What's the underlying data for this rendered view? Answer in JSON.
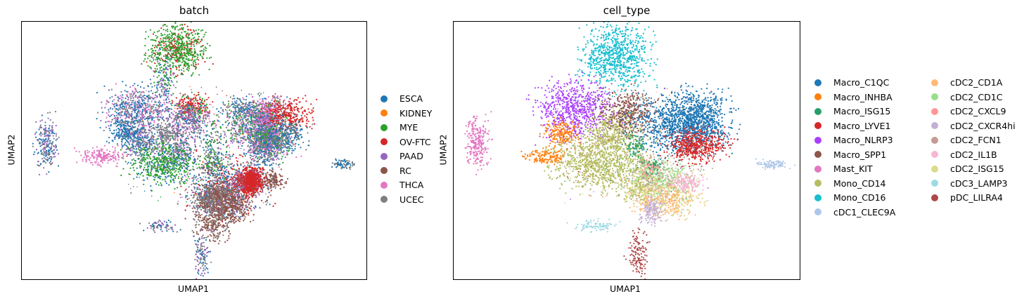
{
  "chart_data": [
    {
      "type": "scatter",
      "title": "batch",
      "xlabel": "UMAP1",
      "ylabel": "UMAP2",
      "legend_position": "right",
      "legend": [
        {
          "label": "ESCA",
          "color": "#1f77b4"
        },
        {
          "label": "KIDNEY",
          "color": "#ff7f0e"
        },
        {
          "label": "MYE",
          "color": "#2ca02c"
        },
        {
          "label": "OV-FTC",
          "color": "#d62728"
        },
        {
          "label": "PAAD",
          "color": "#9467bd"
        },
        {
          "label": "RC",
          "color": "#8c564b"
        },
        {
          "label": "THCA",
          "color": "#e377c2"
        },
        {
          "label": "UCEC",
          "color": "#7f7f7f"
        }
      ],
      "clusters": [
        {
          "x": 0.45,
          "y": 0.89,
          "rx": 0.05,
          "ry": 0.06,
          "n": 700,
          "mix": [
            "MYE",
            "MYE",
            "MYE",
            "MYE",
            "OV-FTC"
          ]
        },
        {
          "x": 0.41,
          "y": 0.78,
          "rx": 0.02,
          "ry": 0.07,
          "n": 120,
          "mix": [
            "MYE",
            "PAAD",
            "ESCA"
          ]
        },
        {
          "x": 0.34,
          "y": 0.66,
          "rx": 0.06,
          "ry": 0.06,
          "n": 700,
          "mix": [
            "ESCA",
            "ESCA",
            "UCEC",
            "PAAD",
            "THCA"
          ]
        },
        {
          "x": 0.3,
          "y": 0.57,
          "rx": 0.03,
          "ry": 0.03,
          "n": 180,
          "mix": [
            "ESCA"
          ]
        },
        {
          "x": 0.49,
          "y": 0.67,
          "rx": 0.03,
          "ry": 0.03,
          "n": 250,
          "mix": [
            "OV-FTC",
            "OV-FTC",
            "MYE"
          ]
        },
        {
          "x": 0.48,
          "y": 0.62,
          "rx": 0.04,
          "ry": 0.04,
          "n": 350,
          "mix": [
            "UCEC",
            "PAAD",
            "THCA",
            "ESCA"
          ]
        },
        {
          "x": 0.67,
          "y": 0.6,
          "rx": 0.06,
          "ry": 0.06,
          "n": 700,
          "mix": [
            "ESCA",
            "MYE",
            "PAAD",
            "THCA",
            "UCEC"
          ]
        },
        {
          "x": 0.71,
          "y": 0.64,
          "rx": 0.03,
          "ry": 0.04,
          "n": 300,
          "mix": [
            "MYE",
            "THCA",
            "PAAD"
          ]
        },
        {
          "x": 0.73,
          "y": 0.54,
          "rx": 0.04,
          "ry": 0.05,
          "n": 250,
          "mix": [
            "MYE",
            "THCA",
            "ESCA"
          ]
        },
        {
          "x": 0.7,
          "y": 0.58,
          "rx": 0.02,
          "ry": 0.03,
          "n": 120,
          "mix": [
            "PAAD"
          ]
        },
        {
          "x": 0.7,
          "y": 0.52,
          "rx": 0.03,
          "ry": 0.02,
          "n": 100,
          "mix": [
            "THCA"
          ]
        },
        {
          "x": 0.71,
          "y": 0.55,
          "rx": 0.03,
          "ry": 0.03,
          "n": 120,
          "mix": [
            "MYE"
          ]
        },
        {
          "x": 0.71,
          "y": 0.62,
          "rx": 0.03,
          "ry": 0.03,
          "n": 120,
          "mix": [
            "THCA",
            "ESCA"
          ]
        },
        {
          "x": 0.7,
          "y": 0.47,
          "rx": 0.03,
          "ry": 0.02,
          "n": 60,
          "mix": [
            "ESCA",
            "UCEC"
          ]
        },
        {
          "x": 0.7,
          "y": 0.65,
          "rx": 0.02,
          "ry": 0.03,
          "n": 60,
          "mix": [
            "THCA"
          ]
        },
        {
          "x": 0.64,
          "y": 0.66,
          "rx": 0.04,
          "ry": 0.03,
          "n": 150,
          "mix": [
            "ESCA",
            "UCEC"
          ]
        },
        {
          "x": 0.77,
          "y": 0.64,
          "rx": 0.04,
          "ry": 0.04,
          "n": 300,
          "mix": [
            "OV-FTC"
          ]
        },
        {
          "x": 0.7,
          "y": 0.52,
          "rx": 0.04,
          "ry": 0.04,
          "n": 250,
          "mix": [
            "ESCA",
            "UCEC",
            "PAAD"
          ]
        },
        {
          "x": 0.35,
          "y": 0.54,
          "rx": 0.04,
          "ry": 0.04,
          "n": 300,
          "mix": [
            "UCEC",
            "PAAD",
            "ESCA"
          ]
        },
        {
          "x": 0.45,
          "y": 0.52,
          "rx": 0.04,
          "ry": 0.05,
          "n": 300,
          "mix": [
            "UCEC",
            "ESCA",
            "PAAD",
            "THCA"
          ]
        },
        {
          "x": 0.42,
          "y": 0.57,
          "rx": 0.02,
          "ry": 0.02,
          "n": 80,
          "mix": [
            "UCEC"
          ]
        },
        {
          "x": 0.41,
          "y": 0.45,
          "rx": 0.06,
          "ry": 0.05,
          "n": 550,
          "mix": [
            "MYE",
            "MYE",
            "MYE",
            "ESCA"
          ]
        },
        {
          "x": 0.55,
          "y": 0.52,
          "rx": 0.02,
          "ry": 0.05,
          "n": 120,
          "mix": [
            "UCEC",
            "ESCA",
            "MYE"
          ]
        },
        {
          "x": 0.56,
          "y": 0.44,
          "rx": 0.03,
          "ry": 0.03,
          "n": 120,
          "mix": [
            "ESCA",
            "MYE",
            "UCEC"
          ]
        },
        {
          "x": 0.59,
          "y": 0.36,
          "rx": 0.07,
          "ry": 0.07,
          "n": 800,
          "mix": [
            "UCEC",
            "RC",
            "PAAD",
            "ESCA",
            "OV-FTC"
          ]
        },
        {
          "x": 0.53,
          "y": 0.33,
          "rx": 0.02,
          "ry": 0.03,
          "n": 100,
          "mix": [
            "ESCA",
            "UCEC"
          ]
        },
        {
          "x": 0.58,
          "y": 0.3,
          "rx": 0.04,
          "ry": 0.04,
          "n": 300,
          "mix": [
            "RC",
            "RC",
            "PAAD"
          ]
        },
        {
          "x": 0.53,
          "y": 0.3,
          "rx": 0.02,
          "ry": 0.02,
          "n": 100,
          "mix": [
            "RC",
            "UCEC"
          ]
        },
        {
          "x": 0.61,
          "y": 0.28,
          "rx": 0.03,
          "ry": 0.03,
          "n": 200,
          "mix": [
            "RC"
          ]
        },
        {
          "x": 0.57,
          "y": 0.33,
          "rx": 0.03,
          "ry": 0.03,
          "n": 200,
          "mix": [
            "UCEC",
            "RC"
          ]
        },
        {
          "x": 0.64,
          "y": 0.39,
          "rx": 0.03,
          "ry": 0.03,
          "n": 120,
          "mix": [
            "PAAD",
            "OV-FTC"
          ]
        },
        {
          "x": 0.55,
          "y": 0.22,
          "rx": 0.03,
          "ry": 0.04,
          "n": 250,
          "mix": [
            "RC",
            "RC",
            "RC",
            "UCEC"
          ]
        },
        {
          "x": 0.66,
          "y": 0.38,
          "rx": 0.03,
          "ry": 0.02,
          "n": 100,
          "mix": [
            "OV-FTC",
            "PAAD"
          ]
        },
        {
          "x": 0.67,
          "y": 0.39,
          "rx": 0.02,
          "ry": 0.02,
          "n": 80,
          "mix": [
            "OV-FTC"
          ]
        },
        {
          "x": 0.66,
          "y": 0.37,
          "rx": 0.02,
          "ry": 0.02,
          "n": 60,
          "mix": [
            "OV-FTC"
          ]
        },
        {
          "x": 0.66,
          "y": 0.36,
          "rx": 0.02,
          "ry": 0.02,
          "n": 60,
          "mix": [
            "PAAD",
            "OV-FTC"
          ]
        },
        {
          "x": 0.68,
          "y": 0.38,
          "rx": 0.02,
          "ry": 0.02,
          "n": 60,
          "mix": [
            "OV-FTC"
          ]
        },
        {
          "x": 0.66,
          "y": 0.37,
          "rx": 0.01,
          "ry": 0.02,
          "n": 40,
          "mix": [
            "OV-FTC"
          ]
        },
        {
          "x": 0.66,
          "y": 0.37,
          "rx": 0.01,
          "ry": 0.02,
          "n": 40,
          "mix": [
            "OV-FTC"
          ]
        },
        {
          "x": 0.66,
          "y": 0.37,
          "rx": 0.01,
          "ry": 0.02,
          "n": 40,
          "mix": [
            "OV-FTC"
          ]
        },
        {
          "x": 0.67,
          "y": 0.41,
          "rx": 0.02,
          "ry": 0.02,
          "n": 60,
          "mix": [
            "OV-FTC"
          ]
        },
        {
          "x": 0.66,
          "y": 0.4,
          "rx": 0.02,
          "ry": 0.02,
          "n": 60,
          "mix": [
            "PAAD"
          ]
        },
        {
          "x": 0.66,
          "y": 0.41,
          "rx": 0.02,
          "ry": 0.02,
          "n": 40,
          "mix": [
            "OV-FTC"
          ]
        },
        {
          "x": 0.66,
          "y": 0.4,
          "rx": 0.01,
          "ry": 0.02,
          "n": 40,
          "mix": [
            "OV-FTC"
          ]
        },
        {
          "x": 0.67,
          "y": 0.4,
          "rx": 0.01,
          "ry": 0.02,
          "n": 40,
          "mix": [
            "OV-FTC"
          ]
        },
        {
          "x": 0.66,
          "y": 0.38,
          "rx": 0.02,
          "ry": 0.02,
          "n": 60,
          "mix": [
            "OV-FTC"
          ]
        },
        {
          "x": 0.66,
          "y": 0.38,
          "rx": 0.01,
          "ry": 0.02,
          "n": 40,
          "mix": [
            "OV-FTC"
          ]
        },
        {
          "x": 0.66,
          "y": 0.39,
          "rx": 0.01,
          "ry": 0.02,
          "n": 40,
          "mix": [
            "OV-FTC"
          ]
        },
        {
          "x": 0.66,
          "y": 0.36,
          "rx": 0.01,
          "ry": 0.02,
          "n": 40,
          "mix": [
            "OV-FTC"
          ]
        },
        {
          "x": 0.66,
          "y": 0.35,
          "rx": 0.01,
          "ry": 0.02,
          "n": 40,
          "mix": [
            "OV-FTC"
          ]
        },
        {
          "x": 0.66,
          "y": 0.39,
          "rx": 0.01,
          "ry": 0.02,
          "n": 40,
          "mix": [
            "OV-FTC"
          ]
        },
        {
          "x": 0.72,
          "y": 0.39,
          "rx": 0.02,
          "ry": 0.02,
          "n": 60,
          "mix": [
            "RC"
          ]
        },
        {
          "x": 0.73,
          "y": 0.39,
          "rx": 0.02,
          "ry": 0.02,
          "n": 60,
          "mix": [
            "RC"
          ]
        },
        {
          "x": 0.76,
          "y": 0.56,
          "rx": 0.04,
          "ry": 0.04,
          "n": 250,
          "mix": [
            "ESCA",
            "ESCA",
            "UCEC"
          ]
        },
        {
          "x": 0.07,
          "y": 0.53,
          "rx": 0.02,
          "ry": 0.06,
          "n": 250,
          "mix": [
            "ESCA",
            "PAAD",
            "UCEC"
          ]
        },
        {
          "x": 0.23,
          "y": 0.48,
          "rx": 0.04,
          "ry": 0.02,
          "n": 180,
          "mix": [
            "THCA"
          ]
        },
        {
          "x": 0.93,
          "y": 0.45,
          "rx": 0.02,
          "ry": 0.01,
          "n": 80,
          "mix": [
            "UCEC",
            "ESCA"
          ]
        },
        {
          "x": 0.4,
          "y": 0.21,
          "rx": 0.03,
          "ry": 0.015,
          "n": 70,
          "mix": [
            "PAAD",
            "UCEC",
            "ESCA"
          ]
        },
        {
          "x": 0.52,
          "y": 0.1,
          "rx": 0.015,
          "ry": 0.05,
          "n": 120,
          "mix": [
            "PAAD",
            "UCEC",
            "ESCA"
          ]
        }
      ]
    },
    {
      "type": "scatter",
      "title": "cell_type",
      "xlabel": "UMAP1",
      "ylabel": "UMAP2",
      "legend_position": "right",
      "legend": [
        {
          "label": "Macro_C1QC",
          "color": "#1f77b4"
        },
        {
          "label": "Macro_INHBA",
          "color": "#ff7f0e"
        },
        {
          "label": "Macro_ISG15",
          "color": "#279e68"
        },
        {
          "label": "Macro_LYVE1",
          "color": "#d62728"
        },
        {
          "label": "Macro_NLRP3",
          "color": "#aa40fc"
        },
        {
          "label": "Macro_SPP1",
          "color": "#8c564b"
        },
        {
          "label": "Mast_KIT",
          "color": "#e377c2"
        },
        {
          "label": "Mono_CD14",
          "color": "#b5bd61"
        },
        {
          "label": "Mono_CD16",
          "color": "#17becf"
        },
        {
          "label": "cDC1_CLEC9A",
          "color": "#aec7e8"
        },
        {
          "label": "cDC2_CD1A",
          "color": "#ffbb78"
        },
        {
          "label": "cDC2_CD1C",
          "color": "#98df8a"
        },
        {
          "label": "cDC2_CXCL9",
          "color": "#ff9896"
        },
        {
          "label": "cDC2_CXCR4hi",
          "color": "#c5b0d5"
        },
        {
          "label": "cDC2_FCN1",
          "color": "#c49c94"
        },
        {
          "label": "cDC2_IL1B",
          "color": "#f7b6d2"
        },
        {
          "label": "cDC2_ISG15",
          "color": "#dbdb8d"
        },
        {
          "label": "cDC3_LAMP3",
          "color": "#9edae5"
        },
        {
          "label": "pDC_LILRA4",
          "color": "#ad494a"
        }
      ],
      "clusters": [
        {
          "x": 0.47,
          "y": 0.87,
          "rx": 0.06,
          "ry": 0.08,
          "n": 800,
          "mix": [
            "Mono_CD16"
          ]
        },
        {
          "x": 0.35,
          "y": 0.66,
          "rx": 0.07,
          "ry": 0.07,
          "n": 700,
          "mix": [
            "Macro_NLRP3"
          ]
        },
        {
          "x": 0.5,
          "y": 0.64,
          "rx": 0.05,
          "ry": 0.06,
          "n": 450,
          "mix": [
            "Macro_SPP1"
          ]
        },
        {
          "x": 0.64,
          "y": 0.6,
          "rx": 0.08,
          "ry": 0.07,
          "n": 700,
          "mix": [
            "Macro_C1QC"
          ]
        },
        {
          "x": 0.7,
          "y": 0.62,
          "rx": 0.06,
          "ry": 0.07,
          "n": 800,
          "mix": [
            "Macro_C1QC"
          ]
        },
        {
          "x": 0.69,
          "y": 0.52,
          "rx": 0.04,
          "ry": 0.04,
          "n": 250,
          "mix": [
            "Macro_LYVE1"
          ]
        },
        {
          "x": 0.7,
          "y": 0.52,
          "rx": 0.06,
          "ry": 0.04,
          "n": 250,
          "mix": [
            "Macro_LYVE1"
          ]
        },
        {
          "x": 0.31,
          "y": 0.57,
          "rx": 0.03,
          "ry": 0.03,
          "n": 200,
          "mix": [
            "Macro_INHBA"
          ]
        },
        {
          "x": 0.27,
          "y": 0.48,
          "rx": 0.04,
          "ry": 0.02,
          "n": 150,
          "mix": [
            "Macro_INHBA"
          ]
        },
        {
          "x": 0.45,
          "y": 0.56,
          "rx": 0.05,
          "ry": 0.05,
          "n": 350,
          "mix": [
            "Mono_CD14"
          ]
        },
        {
          "x": 0.42,
          "y": 0.45,
          "rx": 0.08,
          "ry": 0.06,
          "n": 900,
          "mix": [
            "Mono_CD14"
          ]
        },
        {
          "x": 0.52,
          "y": 0.52,
          "rx": 0.02,
          "ry": 0.03,
          "n": 80,
          "mix": [
            "Macro_ISG15"
          ]
        },
        {
          "x": 0.55,
          "y": 0.42,
          "rx": 0.02,
          "ry": 0.04,
          "n": 100,
          "mix": [
            "cDC2_FCN1",
            "Mono_CD14"
          ]
        },
        {
          "x": 0.59,
          "y": 0.39,
          "rx": 0.06,
          "ry": 0.05,
          "n": 600,
          "mix": [
            "cDC2_CD1C",
            "cDC2_CD1C",
            "cDC2_ISG15",
            "cDC2_FCN1"
          ]
        },
        {
          "x": 0.61,
          "y": 0.31,
          "rx": 0.06,
          "ry": 0.04,
          "n": 450,
          "mix": [
            "cDC2_CD1A",
            "cDC2_CD1A",
            "cDC2_ISG15"
          ]
        },
        {
          "x": 0.67,
          "y": 0.38,
          "rx": 0.03,
          "ry": 0.02,
          "n": 150,
          "mix": [
            "cDC2_IL1B"
          ]
        },
        {
          "x": 0.57,
          "y": 0.27,
          "rx": 0.02,
          "ry": 0.03,
          "n": 150,
          "mix": [
            "cDC2_CXCR4hi"
          ]
        },
        {
          "x": 0.53,
          "y": 0.35,
          "rx": 0.03,
          "ry": 0.03,
          "n": 150,
          "mix": [
            "cDC2_ISG15",
            "Mono_CD14"
          ]
        },
        {
          "x": 0.57,
          "y": 0.44,
          "rx": 0.02,
          "ry": 0.02,
          "n": 80,
          "mix": [
            "cDC2_CXCL9",
            "Macro_ISG15"
          ]
        },
        {
          "x": 0.07,
          "y": 0.53,
          "rx": 0.02,
          "ry": 0.06,
          "n": 250,
          "mix": [
            "Mast_KIT"
          ]
        },
        {
          "x": 0.92,
          "y": 0.45,
          "rx": 0.03,
          "ry": 0.01,
          "n": 90,
          "mix": [
            "cDC1_CLEC9A"
          ]
        },
        {
          "x": 0.41,
          "y": 0.21,
          "rx": 0.04,
          "ry": 0.015,
          "n": 90,
          "mix": [
            "cDC3_LAMP3"
          ]
        },
        {
          "x": 0.53,
          "y": 0.1,
          "rx": 0.02,
          "ry": 0.05,
          "n": 130,
          "mix": [
            "pDC_LILRA4"
          ]
        }
      ]
    }
  ]
}
